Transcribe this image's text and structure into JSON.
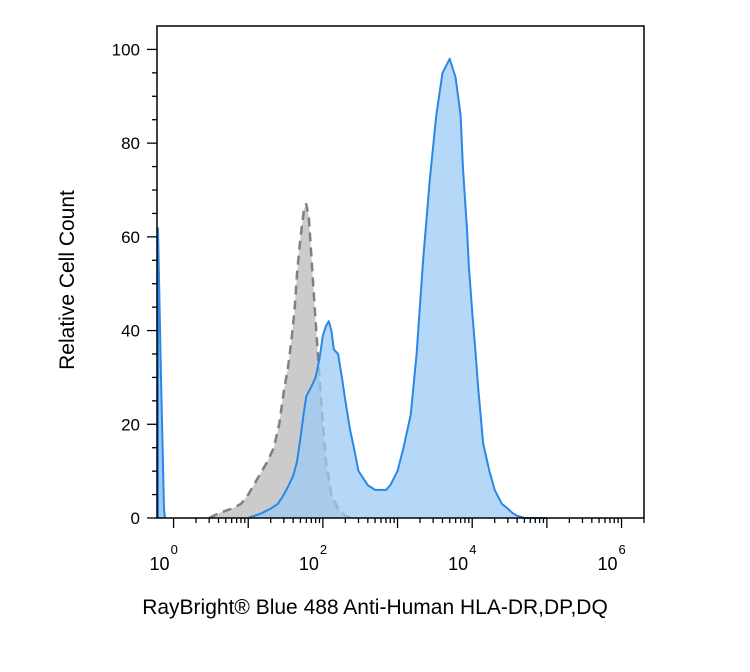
{
  "chart_data": {
    "type": "area",
    "title": "",
    "xlabel": "RayBright® Blue 488 Anti-Human HLA-DR,DP,DQ",
    "ylabel": "Relative Cell Count",
    "x_scale": "log",
    "xlim": [
      0.6,
      2000000
    ],
    "ylim": [
      0,
      105
    ],
    "x_ticks": [
      {
        "value": 1,
        "base": "10",
        "exp": "0"
      },
      {
        "value": 100,
        "base": "10",
        "exp": "2"
      },
      {
        "value": 10000,
        "base": "10",
        "exp": "4"
      },
      {
        "value": 1000000,
        "base": "10",
        "exp": "6"
      }
    ],
    "y_ticks": [
      0,
      20,
      40,
      60,
      80,
      100
    ],
    "grid": false,
    "legend": "none",
    "series": [
      {
        "style": "dashed-outline",
        "fill": "#c8c8c8",
        "stroke": "#808080",
        "x": [
          3,
          4,
          6,
          8,
          10,
          14,
          18,
          22,
          26,
          30,
          34,
          38,
          42,
          45,
          48,
          52,
          56,
          60,
          65,
          70,
          80,
          90,
          100,
          110,
          130,
          160,
          200,
          250
        ],
        "y": [
          0,
          1,
          2,
          3,
          5,
          9,
          12,
          15,
          20,
          27,
          32,
          38,
          45,
          52,
          57,
          62,
          66,
          67,
          64,
          56,
          42,
          30,
          20,
          12,
          5,
          2,
          0.5,
          0
        ]
      },
      {
        "style": "solid-outline",
        "fill": "#9ccbf5",
        "stroke": "#2a87e6",
        "x": [
          10,
          15,
          20,
          25,
          30,
          35,
          40,
          45,
          50,
          55,
          60,
          70,
          80,
          90,
          100,
          110,
          120,
          130,
          140,
          160,
          180,
          200,
          230,
          260,
          300,
          400,
          500,
          600,
          700,
          800,
          1000,
          1200,
          1500,
          1800,
          2200,
          2700,
          3300,
          4000,
          5000,
          6000,
          7000,
          7500,
          8000,
          8500,
          9000,
          10000,
          11000,
          12000,
          14000,
          17000,
          20000,
          25000,
          30000,
          35000,
          40000,
          50000,
          60000,
          80000,
          100000
        ],
        "y": [
          0,
          1,
          2,
          3,
          5,
          7,
          9,
          12,
          17,
          22,
          26,
          28,
          30,
          34,
          39,
          41,
          42,
          40,
          36,
          35,
          30,
          25,
          19,
          15,
          10,
          7,
          6,
          6,
          6,
          7,
          10,
          15,
          22,
          35,
          55,
          72,
          86,
          95,
          98,
          94,
          86,
          75,
          68,
          62,
          54,
          44,
          36,
          28,
          16,
          10,
          6,
          3,
          2,
          1,
          0.5,
          0,
          0,
          0,
          0
        ]
      }
    ]
  }
}
